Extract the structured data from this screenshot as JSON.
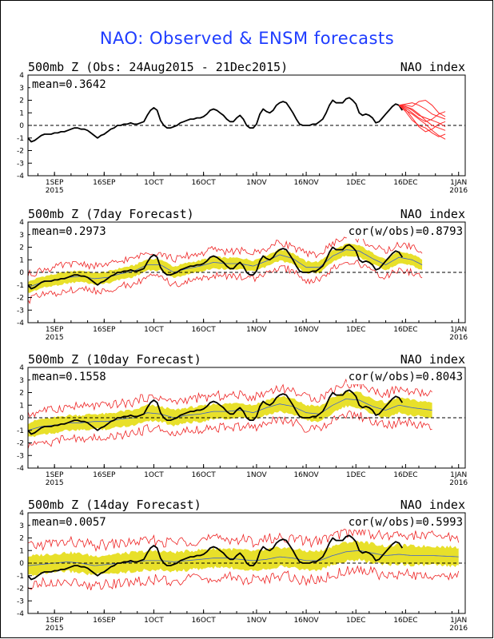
{
  "page": {
    "title": "NAO: Observed & ENSM forecasts"
  },
  "chart_data": [
    {
      "type": "line",
      "title": "500mb  Z (Obs: 24Aug2015 - 21Dec2015)",
      "index_label": "NAO index",
      "mean_label": "mean=0.3642",
      "cor_label": "",
      "ylim": [
        -4,
        4
      ],
      "yticks": [
        "4",
        "3",
        "2",
        "1",
        "0",
        "-1",
        "-2",
        "-3",
        "-4"
      ],
      "xlim": [
        0,
        132
      ],
      "xticks": [
        {
          "x": 8,
          "label": "1SEP",
          "sub": "2015"
        },
        {
          "x": 23,
          "label": "16SEP",
          "sub": ""
        },
        {
          "x": 38,
          "label": "1OCT",
          "sub": ""
        },
        {
          "x": 53,
          "label": "16OCT",
          "sub": ""
        },
        {
          "x": 69,
          "label": "1NOV",
          "sub": ""
        },
        {
          "x": 84,
          "label": "16NOV",
          "sub": ""
        },
        {
          "x": 99,
          "label": "1DEC",
          "sub": ""
        },
        {
          "x": 114,
          "label": "16DEC",
          "sub": ""
        },
        {
          "x": 130,
          "label": "1JAN",
          "sub": "2016"
        }
      ],
      "observed": [
        [
          0,
          -1.0
        ],
        [
          1,
          -1.3
        ],
        [
          2,
          -1.2
        ],
        [
          3,
          -1.0
        ],
        [
          4,
          -0.8
        ],
        [
          5,
          -0.7
        ],
        [
          6,
          -0.7
        ],
        [
          7,
          -0.7
        ],
        [
          8,
          -0.6
        ],
        [
          9,
          -0.6
        ],
        [
          10,
          -0.5
        ],
        [
          11,
          -0.5
        ],
        [
          12,
          -0.4
        ],
        [
          13,
          -0.3
        ],
        [
          14,
          -0.2
        ],
        [
          15,
          -0.2
        ],
        [
          16,
          -0.3
        ],
        [
          17,
          -0.3
        ],
        [
          18,
          -0.4
        ],
        [
          19,
          -0.6
        ],
        [
          20,
          -0.8
        ],
        [
          21,
          -1.0
        ],
        [
          22,
          -0.8
        ],
        [
          23,
          -0.7
        ],
        [
          24,
          -0.5
        ],
        [
          25,
          -0.3
        ],
        [
          26,
          -0.2
        ],
        [
          27,
          0.0
        ],
        [
          28,
          0.0
        ],
        [
          29,
          0.1
        ],
        [
          30,
          0.1
        ],
        [
          31,
          0.2
        ],
        [
          32,
          0.1
        ],
        [
          33,
          0.1
        ],
        [
          34,
          0.2
        ],
        [
          35,
          0.3
        ],
        [
          36,
          0.8
        ],
        [
          37,
          1.2
        ],
        [
          38,
          1.4
        ],
        [
          39,
          1.2
        ],
        [
          40,
          0.4
        ],
        [
          41,
          0.0
        ],
        [
          42,
          -0.2
        ],
        [
          43,
          -0.2
        ],
        [
          44,
          -0.1
        ],
        [
          45,
          0.0
        ],
        [
          46,
          0.2
        ],
        [
          47,
          0.3
        ],
        [
          48,
          0.4
        ],
        [
          49,
          0.5
        ],
        [
          50,
          0.5
        ],
        [
          51,
          0.6
        ],
        [
          52,
          0.6
        ],
        [
          53,
          0.7
        ],
        [
          54,
          0.9
        ],
        [
          55,
          1.2
        ],
        [
          56,
          1.3
        ],
        [
          57,
          1.2
        ],
        [
          58,
          1.0
        ],
        [
          59,
          0.8
        ],
        [
          60,
          0.5
        ],
        [
          61,
          0.3
        ],
        [
          62,
          0.3
        ],
        [
          63,
          0.6
        ],
        [
          64,
          0.8
        ],
        [
          65,
          0.5
        ],
        [
          66,
          0.0
        ],
        [
          67,
          -0.2
        ],
        [
          68,
          -0.2
        ],
        [
          69,
          0.1
        ],
        [
          70,
          0.9
        ],
        [
          71,
          1.3
        ],
        [
          72,
          1.1
        ],
        [
          73,
          1.0
        ],
        [
          74,
          1.2
        ],
        [
          75,
          1.6
        ],
        [
          76,
          1.8
        ],
        [
          77,
          1.9
        ],
        [
          78,
          1.8
        ],
        [
          79,
          1.4
        ],
        [
          80,
          1.0
        ],
        [
          81,
          0.5
        ],
        [
          82,
          0.1
        ],
        [
          83,
          0.0
        ],
        [
          84,
          0.0
        ],
        [
          85,
          0.0
        ],
        [
          86,
          0.1
        ],
        [
          87,
          0.1
        ],
        [
          88,
          0.3
        ],
        [
          89,
          0.5
        ],
        [
          90,
          1.0
        ],
        [
          91,
          1.6
        ],
        [
          92,
          2.0
        ],
        [
          93,
          1.8
        ],
        [
          94,
          1.8
        ],
        [
          95,
          1.8
        ],
        [
          96,
          2.1
        ],
        [
          97,
          2.2
        ],
        [
          98,
          2.0
        ],
        [
          99,
          1.7
        ],
        [
          100,
          1.0
        ],
        [
          101,
          0.8
        ],
        [
          102,
          0.9
        ],
        [
          103,
          0.8
        ],
        [
          104,
          0.6
        ],
        [
          105,
          0.2
        ],
        [
          106,
          0.3
        ],
        [
          107,
          0.6
        ],
        [
          108,
          0.9
        ],
        [
          109,
          1.2
        ],
        [
          110,
          1.5
        ],
        [
          111,
          1.7
        ],
        [
          112,
          1.6
        ],
        [
          113,
          1.2
        ]
      ],
      "members": [
        {
          "x0": 112,
          "values": [
            1.6,
            1.2,
            0.9,
            0.5,
            0.1,
            -0.4,
            -0.8,
            -1.1
          ]
        },
        {
          "x0": 112,
          "values": [
            1.6,
            1.5,
            1.3,
            0.9,
            0.4,
            0.0,
            -0.2,
            -0.4
          ]
        },
        {
          "x0": 112,
          "values": [
            1.6,
            1.7,
            1.8,
            1.6,
            1.3,
            0.9,
            0.7,
            0.5
          ]
        },
        {
          "x0": 112,
          "values": [
            1.6,
            1.4,
            1.0,
            0.6,
            0.3,
            0.5,
            0.9,
            1.1
          ]
        },
        {
          "x0": 112,
          "values": [
            1.6,
            1.3,
            0.6,
            -0.1,
            -0.5,
            -0.3,
            0.1,
            0.3
          ]
        },
        {
          "x0": 112,
          "values": [
            1.6,
            1.6,
            1.5,
            1.9,
            2.0,
            1.6,
            1.0,
            0.7
          ]
        },
        {
          "x0": 112,
          "values": [
            1.6,
            1.1,
            0.4,
            0.0,
            -0.2,
            -0.6,
            -0.9,
            -0.7
          ]
        },
        {
          "x0": 112,
          "values": [
            1.6,
            1.5,
            1.2,
            0.8,
            0.6,
            0.4,
            0.2,
            -0.1
          ]
        }
      ]
    },
    {
      "type": "line",
      "title": "500mb  Z (7day Forecast)",
      "index_label": "NAO index",
      "mean_label": "mean=0.2973",
      "cor_label": "cor(w/obs)=0.8793",
      "ylim": [
        -4,
        4
      ],
      "yticks": [
        "4",
        "3",
        "2",
        "1",
        "0",
        "-1",
        "-2",
        "-3",
        "-4"
      ],
      "xlim": [
        0,
        132
      ],
      "xticks": [
        {
          "x": 8,
          "label": "1SEP",
          "sub": "2015"
        },
        {
          "x": 23,
          "label": "16SEP",
          "sub": ""
        },
        {
          "x": 38,
          "label": "1OCT",
          "sub": ""
        },
        {
          "x": 53,
          "label": "16OCT",
          "sub": ""
        },
        {
          "x": 69,
          "label": "1NOV",
          "sub": ""
        },
        {
          "x": 84,
          "label": "16NOV",
          "sub": ""
        },
        {
          "x": 99,
          "label": "1DEC",
          "sub": ""
        },
        {
          "x": 114,
          "label": "16DEC",
          "sub": ""
        },
        {
          "x": 130,
          "label": "1JAN",
          "sub": "2016"
        }
      ],
      "forecast_mean": [
        [
          0,
          -1.2
        ],
        [
          4,
          -0.8
        ],
        [
          8,
          -0.6
        ],
        [
          12,
          -0.4
        ],
        [
          16,
          -0.3
        ],
        [
          20,
          -0.5
        ],
        [
          24,
          -0.4
        ],
        [
          28,
          -0.1
        ],
        [
          32,
          0.1
        ],
        [
          36,
          0.6
        ],
        [
          40,
          0.6
        ],
        [
          44,
          0.0
        ],
        [
          48,
          0.3
        ],
        [
          52,
          0.5
        ],
        [
          56,
          0.8
        ],
        [
          60,
          0.7
        ],
        [
          64,
          0.7
        ],
        [
          68,
          0.5
        ],
        [
          72,
          0.9
        ],
        [
          76,
          1.4
        ],
        [
          80,
          1.1
        ],
        [
          84,
          0.4
        ],
        [
          88,
          0.4
        ],
        [
          92,
          1.3
        ],
        [
          96,
          1.8
        ],
        [
          100,
          1.7
        ],
        [
          104,
          1.1
        ],
        [
          108,
          0.6
        ],
        [
          112,
          1.2
        ],
        [
          116,
          1.0
        ],
        [
          119,
          0.6
        ]
      ],
      "band_half_width": 0.45,
      "range_half_width": 1.0,
      "observed_through": 113
    },
    {
      "type": "line",
      "title": "500mb  Z (10day Forecast)",
      "index_label": "NAO index",
      "mean_label": "mean=0.1558",
      "cor_label": "cor(w/obs)=0.8043",
      "ylim": [
        -4,
        4
      ],
      "yticks": [
        "4",
        "3",
        "2",
        "1",
        "0",
        "-1",
        "-2",
        "-3",
        "-4"
      ],
      "xlim": [
        0,
        132
      ],
      "xticks": [
        {
          "x": 8,
          "label": "1SEP",
          "sub": "2015"
        },
        {
          "x": 23,
          "label": "16SEP",
          "sub": ""
        },
        {
          "x": 38,
          "label": "1OCT",
          "sub": ""
        },
        {
          "x": 53,
          "label": "16OCT",
          "sub": ""
        },
        {
          "x": 69,
          "label": "1NOV",
          "sub": ""
        },
        {
          "x": 84,
          "label": "16NOV",
          "sub": ""
        },
        {
          "x": 99,
          "label": "1DEC",
          "sub": ""
        },
        {
          "x": 114,
          "label": "16DEC",
          "sub": ""
        },
        {
          "x": 130,
          "label": "1JAN",
          "sub": "2016"
        }
      ],
      "forecast_mean": [
        [
          0,
          -1.0
        ],
        [
          4,
          -0.7
        ],
        [
          8,
          -0.6
        ],
        [
          12,
          -0.4
        ],
        [
          16,
          -0.4
        ],
        [
          20,
          -0.3
        ],
        [
          24,
          -0.3
        ],
        [
          28,
          -0.1
        ],
        [
          32,
          0.0
        ],
        [
          36,
          0.4
        ],
        [
          40,
          0.3
        ],
        [
          44,
          0.0
        ],
        [
          48,
          0.2
        ],
        [
          52,
          0.3
        ],
        [
          56,
          0.5
        ],
        [
          60,
          0.5
        ],
        [
          64,
          0.6
        ],
        [
          68,
          0.4
        ],
        [
          72,
          0.8
        ],
        [
          76,
          1.1
        ],
        [
          80,
          0.9
        ],
        [
          84,
          0.4
        ],
        [
          88,
          0.3
        ],
        [
          92,
          1.0
        ],
        [
          96,
          1.5
        ],
        [
          100,
          1.4
        ],
        [
          104,
          0.9
        ],
        [
          108,
          0.6
        ],
        [
          112,
          1.0
        ],
        [
          116,
          0.8
        ],
        [
          122,
          0.6
        ]
      ],
      "band_half_width": 0.6,
      "range_half_width": 1.25,
      "observed_through": 113
    },
    {
      "type": "line",
      "title": "500mb  Z (14day Forecast)",
      "index_label": "NAO index",
      "mean_label": "mean=0.0057",
      "cor_label": "cor(w/obs)=0.5993",
      "ylim": [
        -4,
        4
      ],
      "yticks": [
        "4",
        "3",
        "2",
        "1",
        "0",
        "-1",
        "-2",
        "-3",
        "-4"
      ],
      "xlim": [
        0,
        132
      ],
      "xticks": [
        {
          "x": 8,
          "label": "1SEP",
          "sub": "2015"
        },
        {
          "x": 23,
          "label": "16SEP",
          "sub": ""
        },
        {
          "x": 38,
          "label": "1OCT",
          "sub": ""
        },
        {
          "x": 53,
          "label": "16OCT",
          "sub": ""
        },
        {
          "x": 69,
          "label": "1NOV",
          "sub": ""
        },
        {
          "x": 84,
          "label": "16NOV",
          "sub": ""
        },
        {
          "x": 99,
          "label": "1DEC",
          "sub": ""
        },
        {
          "x": 114,
          "label": "16DEC",
          "sub": ""
        },
        {
          "x": 130,
          "label": "1JAN",
          "sub": "2016"
        }
      ],
      "forecast_mean": [
        [
          0,
          -0.2
        ],
        [
          4,
          -0.1
        ],
        [
          8,
          0.0
        ],
        [
          12,
          0.1
        ],
        [
          16,
          0.0
        ],
        [
          20,
          -0.2
        ],
        [
          24,
          -0.1
        ],
        [
          28,
          0.0
        ],
        [
          32,
          0.1
        ],
        [
          36,
          0.2
        ],
        [
          40,
          0.2
        ],
        [
          44,
          0.1
        ],
        [
          48,
          0.2
        ],
        [
          52,
          0.3
        ],
        [
          56,
          0.4
        ],
        [
          60,
          0.4
        ],
        [
          64,
          0.3
        ],
        [
          68,
          0.2
        ],
        [
          72,
          0.3
        ],
        [
          76,
          0.5
        ],
        [
          80,
          0.4
        ],
        [
          84,
          0.2
        ],
        [
          88,
          0.2
        ],
        [
          92,
          0.6
        ],
        [
          96,
          0.9
        ],
        [
          100,
          1.0
        ],
        [
          104,
          0.8
        ],
        [
          108,
          0.6
        ],
        [
          112,
          0.7
        ],
        [
          116,
          0.6
        ],
        [
          122,
          0.6
        ],
        [
          130,
          0.5
        ]
      ],
      "band_half_width": 0.75,
      "range_half_width": 1.55,
      "observed_through": 113
    }
  ]
}
